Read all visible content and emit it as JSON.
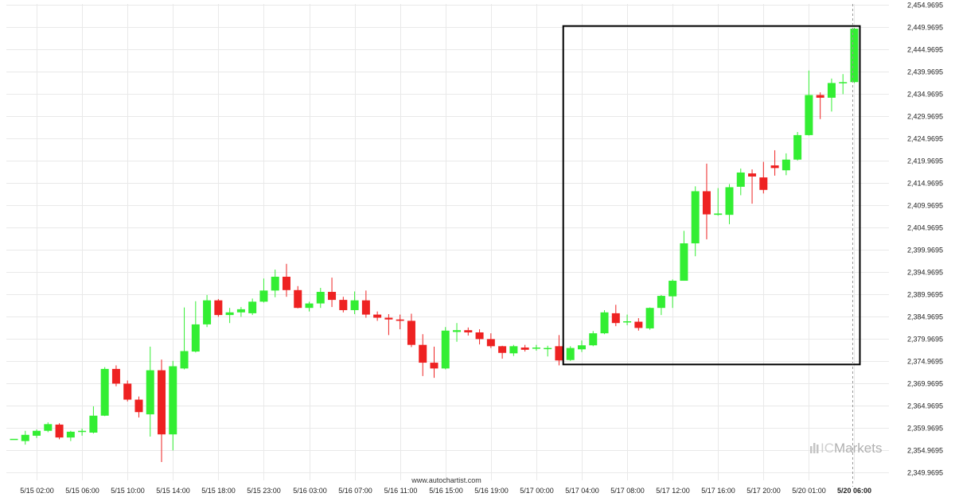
{
  "watermark": "www.autochartist.com",
  "brand": {
    "prefix": "IC",
    "suffix": "Markets"
  },
  "colors": {
    "up": "#33ee33",
    "down": "#ee2222",
    "grid": "#e9e9e9",
    "box": "#000000",
    "cursor": "#999999"
  },
  "chart_data": {
    "type": "candlestick",
    "title": "",
    "xlabel": "",
    "ylabel": "",
    "ylim": [
      2347.4695,
      2454.9695
    ],
    "y_ticks": [
      "2,349.9695",
      "2,354.9695",
      "2,359.9695",
      "2,364.9695",
      "2,369.9695",
      "2,374.9695",
      "2,379.9695",
      "2,384.9695",
      "2,389.9695",
      "2,394.9695",
      "2,399.9695",
      "2,404.9695",
      "2,409.9695",
      "2,414.9695",
      "2,419.9695",
      "2,424.9695",
      "2,429.9695",
      "2,434.9695",
      "2,439.9695",
      "2,444.9695",
      "2,449.9695",
      "2,454.9695"
    ],
    "x_ticks": [
      {
        "label": "5/15 02:00",
        "bar": 2
      },
      {
        "label": "5/15 06:00",
        "bar": 6
      },
      {
        "label": "5/15 10:00",
        "bar": 10
      },
      {
        "label": "5/15 14:00",
        "bar": 14
      },
      {
        "label": "5/15 18:00",
        "bar": 18
      },
      {
        "label": "5/15 23:00",
        "bar": 22
      },
      {
        "label": "5/16 03:00",
        "bar": 26
      },
      {
        "label": "5/16 07:00",
        "bar": 30
      },
      {
        "label": "5/16 11:00",
        "bar": 34
      },
      {
        "label": "5/16 15:00",
        "bar": 38
      },
      {
        "label": "5/16 19:00",
        "bar": 42
      },
      {
        "label": "5/17 00:00",
        "bar": 46
      },
      {
        "label": "5/17 04:00",
        "bar": 50
      },
      {
        "label": "5/17 08:00",
        "bar": 54
      },
      {
        "label": "5/17 12:00",
        "bar": 58
      },
      {
        "label": "5/17 16:00",
        "bar": 62
      },
      {
        "label": "5/17 20:00",
        "bar": 66
      },
      {
        "label": "5/20 01:00",
        "bar": 70
      },
      {
        "label": "5/20 06:00",
        "bar": 74,
        "bold": true
      }
    ],
    "candles": [
      {
        "o": 2357.5,
        "h": 2357.5,
        "l": 2357.5,
        "c": 2357.5
      },
      {
        "o": 2357.0,
        "h": 2359.3,
        "l": 2356.2,
        "c": 2358.4
      },
      {
        "o": 2358.2,
        "h": 2359.6,
        "l": 2357.7,
        "c": 2359.3
      },
      {
        "o": 2359.3,
        "h": 2361.2,
        "l": 2359.0,
        "c": 2360.8
      },
      {
        "o": 2360.7,
        "h": 2361.0,
        "l": 2357.4,
        "c": 2357.8
      },
      {
        "o": 2357.8,
        "h": 2359.3,
        "l": 2357.0,
        "c": 2359.1
      },
      {
        "o": 2359.1,
        "h": 2359.8,
        "l": 2358.2,
        "c": 2359.3
      },
      {
        "o": 2358.9,
        "h": 2364.8,
        "l": 2358.7,
        "c": 2362.7
      },
      {
        "o": 2362.7,
        "h": 2373.6,
        "l": 2362.6,
        "c": 2373.2
      },
      {
        "o": 2373.2,
        "h": 2374.0,
        "l": 2369.3,
        "c": 2369.9
      },
      {
        "o": 2369.9,
        "h": 2370.6,
        "l": 2365.9,
        "c": 2366.3
      },
      {
        "o": 2366.3,
        "h": 2367.0,
        "l": 2362.3,
        "c": 2363.5
      },
      {
        "o": 2363.0,
        "h": 2378.2,
        "l": 2358.0,
        "c": 2372.9
      },
      {
        "o": 2372.9,
        "h": 2375.3,
        "l": 2352.3,
        "c": 2358.5
      },
      {
        "o": 2358.5,
        "h": 2375.0,
        "l": 2354.9,
        "c": 2373.8
      },
      {
        "o": 2373.3,
        "h": 2387.0,
        "l": 2373.1,
        "c": 2377.2
      },
      {
        "o": 2377.1,
        "h": 2388.4,
        "l": 2376.9,
        "c": 2383.2
      },
      {
        "o": 2383.2,
        "h": 2389.8,
        "l": 2382.6,
        "c": 2388.6
      },
      {
        "o": 2388.6,
        "h": 2388.9,
        "l": 2384.9,
        "c": 2385.3
      },
      {
        "o": 2385.3,
        "h": 2386.9,
        "l": 2383.5,
        "c": 2385.9
      },
      {
        "o": 2385.9,
        "h": 2387.1,
        "l": 2384.9,
        "c": 2386.6
      },
      {
        "o": 2385.7,
        "h": 2389.0,
        "l": 2385.3,
        "c": 2388.3
      },
      {
        "o": 2388.3,
        "h": 2393.5,
        "l": 2388.1,
        "c": 2390.8
      },
      {
        "o": 2390.8,
        "h": 2395.5,
        "l": 2389.3,
        "c": 2393.9
      },
      {
        "o": 2393.9,
        "h": 2396.8,
        "l": 2389.4,
        "c": 2390.9
      },
      {
        "o": 2390.9,
        "h": 2391.8,
        "l": 2386.8,
        "c": 2386.9
      },
      {
        "o": 2386.9,
        "h": 2388.3,
        "l": 2386.1,
        "c": 2387.9
      },
      {
        "o": 2387.9,
        "h": 2391.4,
        "l": 2386.9,
        "c": 2390.5
      },
      {
        "o": 2390.5,
        "h": 2393.7,
        "l": 2387.1,
        "c": 2388.7
      },
      {
        "o": 2388.7,
        "h": 2389.4,
        "l": 2385.9,
        "c": 2386.4
      },
      {
        "o": 2386.4,
        "h": 2390.6,
        "l": 2385.5,
        "c": 2388.6
      },
      {
        "o": 2388.6,
        "h": 2390.8,
        "l": 2384.7,
        "c": 2385.4
      },
      {
        "o": 2385.4,
        "h": 2386.1,
        "l": 2384.0,
        "c": 2384.7
      },
      {
        "o": 2384.7,
        "h": 2385.5,
        "l": 2380.8,
        "c": 2384.3
      },
      {
        "o": 2384.3,
        "h": 2385.4,
        "l": 2382.1,
        "c": 2384.0
      },
      {
        "o": 2384.0,
        "h": 2385.6,
        "l": 2378.1,
        "c": 2378.6
      },
      {
        "o": 2378.6,
        "h": 2381.0,
        "l": 2371.6,
        "c": 2374.6
      },
      {
        "o": 2374.6,
        "h": 2378.2,
        "l": 2371.2,
        "c": 2373.3
      },
      {
        "o": 2373.3,
        "h": 2382.6,
        "l": 2373.1,
        "c": 2381.8
      },
      {
        "o": 2381.5,
        "h": 2383.5,
        "l": 2379.3,
        "c": 2381.9
      },
      {
        "o": 2381.9,
        "h": 2382.5,
        "l": 2380.7,
        "c": 2381.4
      },
      {
        "o": 2381.4,
        "h": 2382.1,
        "l": 2378.7,
        "c": 2379.9
      },
      {
        "o": 2379.9,
        "h": 2381.2,
        "l": 2377.9,
        "c": 2378.3
      },
      {
        "o": 2378.3,
        "h": 2378.4,
        "l": 2375.5,
        "c": 2376.8
      },
      {
        "o": 2376.7,
        "h": 2378.6,
        "l": 2376.1,
        "c": 2378.3
      },
      {
        "o": 2378.0,
        "h": 2378.6,
        "l": 2377.1,
        "c": 2377.5
      },
      {
        "o": 2377.8,
        "h": 2378.6,
        "l": 2377.3,
        "c": 2378.0
      },
      {
        "o": 2377.9,
        "h": 2378.4,
        "l": 2376.0,
        "c": 2377.9
      },
      {
        "o": 2378.3,
        "h": 2380.8,
        "l": 2374.0,
        "c": 2375.1
      },
      {
        "o": 2375.2,
        "h": 2378.3,
        "l": 2375.0,
        "c": 2377.9
      },
      {
        "o": 2377.6,
        "h": 2379.6,
        "l": 2377.0,
        "c": 2378.5
      },
      {
        "o": 2378.5,
        "h": 2381.7,
        "l": 2378.3,
        "c": 2381.2
      },
      {
        "o": 2381.2,
        "h": 2386.4,
        "l": 2381.0,
        "c": 2385.9
      },
      {
        "o": 2385.7,
        "h": 2387.6,
        "l": 2382.8,
        "c": 2383.5
      },
      {
        "o": 2383.7,
        "h": 2385.4,
        "l": 2383.0,
        "c": 2383.9
      },
      {
        "o": 2383.8,
        "h": 2384.6,
        "l": 2381.8,
        "c": 2382.4
      },
      {
        "o": 2382.3,
        "h": 2387.0,
        "l": 2382.0,
        "c": 2386.9
      },
      {
        "o": 2386.9,
        "h": 2389.8,
        "l": 2385.3,
        "c": 2389.6
      },
      {
        "o": 2389.5,
        "h": 2393.3,
        "l": 2386.9,
        "c": 2393.0
      },
      {
        "o": 2393.0,
        "h": 2404.2,
        "l": 2393.0,
        "c": 2401.4
      },
      {
        "o": 2401.4,
        "h": 2414.2,
        "l": 2398.5,
        "c": 2413.1
      },
      {
        "o": 2413.1,
        "h": 2419.3,
        "l": 2402.3,
        "c": 2407.9
      },
      {
        "o": 2407.8,
        "h": 2413.8,
        "l": 2407.6,
        "c": 2408.1
      },
      {
        "o": 2407.8,
        "h": 2414.7,
        "l": 2405.7,
        "c": 2414.0
      },
      {
        "o": 2414.1,
        "h": 2418.2,
        "l": 2412.2,
        "c": 2417.3
      },
      {
        "o": 2417.1,
        "h": 2418.0,
        "l": 2410.3,
        "c": 2416.4
      },
      {
        "o": 2416.2,
        "h": 2419.7,
        "l": 2412.6,
        "c": 2413.4
      },
      {
        "o": 2418.9,
        "h": 2422.3,
        "l": 2416.6,
        "c": 2418.3
      },
      {
        "o": 2417.8,
        "h": 2421.6,
        "l": 2416.7,
        "c": 2420.2
      },
      {
        "o": 2420.2,
        "h": 2426.4,
        "l": 2420.0,
        "c": 2425.7
      },
      {
        "o": 2425.7,
        "h": 2440.2,
        "l": 2425.6,
        "c": 2434.7
      },
      {
        "o": 2434.7,
        "h": 2435.3,
        "l": 2429.3,
        "c": 2434.1
      },
      {
        "o": 2434.1,
        "h": 2438.4,
        "l": 2431.0,
        "c": 2437.4
      },
      {
        "o": 2437.4,
        "h": 2439.4,
        "l": 2434.9,
        "c": 2437.6
      },
      {
        "o": 2437.6,
        "h": 2449.8,
        "l": 2437.4,
        "c": 2449.6
      }
    ],
    "highlight_box": {
      "from_bar": 49,
      "to_bar": 74,
      "low": 2374.2,
      "high": 2450.2
    },
    "cursor_bar": 74
  }
}
